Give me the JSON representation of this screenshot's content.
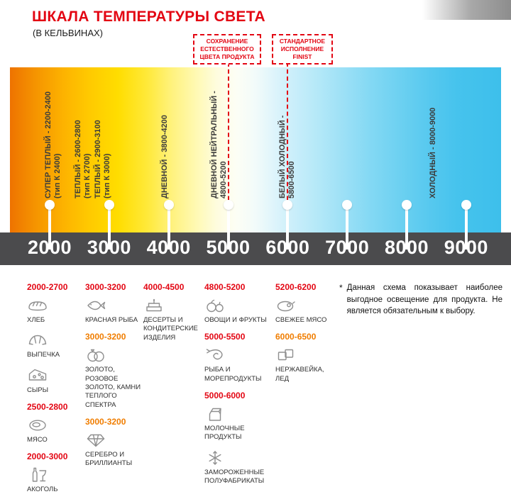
{
  "header": {
    "title": "ШКАЛА ТЕМПЕРАТУРЫ СВЕТА",
    "subtitle": "(В КЕЛЬВИНАХ)"
  },
  "callouts": [
    {
      "lines": [
        "СОХРАНЕНИЕ",
        "ЕСТЕСТВЕННОГО",
        "ЦВЕТА ПРОДУКТА"
      ],
      "anchor_k": "5000"
    },
    {
      "lines": [
        "СТАНДАРТНОЕ",
        "ИСПОЛНЕНИЕ",
        "FINIST"
      ],
      "anchor_k": "6000"
    }
  ],
  "scale": {
    "unit": "K",
    "ticks": [
      "2000",
      "3000",
      "4000",
      "5000",
      "6000",
      "7000",
      "8000",
      "9000"
    ],
    "zones": [
      {
        "lines": [
          "СУПЕР ТЕПЛЫЙ - 2200-2400",
          "(тип К 2400)"
        ]
      },
      {
        "lines": [
          "ТЕПЛЫЙ - 2600-2800",
          "(тип К 2700)"
        ]
      },
      {
        "lines": [
          "ТЕПЛЫЙ - 2900-3100",
          "(тип К 3000)"
        ]
      },
      {
        "lines": [
          "ДНЕВНОЙ - 3800-4200"
        ]
      },
      {
        "lines": [
          "ДНЕВНОЙ НЕЙТРАЛЬНЫЙ -",
          "4800-5200"
        ]
      },
      {
        "lines": [
          "БЕЛЫЙ ХОЛОДНЫЙ -",
          "5800-6500"
        ]
      },
      {
        "lines": [
          "ХОЛОДНЫЙ - 8000-9000"
        ]
      }
    ]
  },
  "products": {
    "columns": [
      {
        "items": [
          {
            "type": "range",
            "color": "red",
            "text": "2000-2700"
          },
          {
            "type": "product",
            "icon": "bread-icon",
            "label": "ХЛЕБ"
          },
          {
            "type": "product",
            "icon": "pastry-icon",
            "label": "ВЫПЕЧКА"
          },
          {
            "type": "product",
            "icon": "cheese-icon",
            "label": "СЫРЫ"
          },
          {
            "type": "range",
            "color": "red",
            "text": "2500-2800"
          },
          {
            "type": "product",
            "icon": "meat-icon",
            "label": "МЯСО"
          },
          {
            "type": "range",
            "color": "red",
            "text": "2000-3000"
          },
          {
            "type": "product",
            "icon": "alcohol-icon",
            "label": "АКОГОЛЬ"
          }
        ]
      },
      {
        "items": [
          {
            "type": "range",
            "color": "red",
            "text": "3000-3200"
          },
          {
            "type": "product",
            "icon": "fish-icon",
            "label": "КРАСНАЯ РЫБА"
          },
          {
            "type": "range",
            "color": "orange",
            "text": "3000-3200"
          },
          {
            "type": "product",
            "icon": "rings-icon",
            "label": "ЗОЛОТО, РОЗОВОЕ ЗОЛОТО, КАМНИ ТЕПЛОГО СПЕКТРА"
          },
          {
            "type": "range",
            "color": "orange",
            "text": "3000-3200"
          },
          {
            "type": "product",
            "icon": "diamond-icon",
            "label": "СЕРЕБРО И БРИЛЛИАНТЫ"
          }
        ]
      },
      {
        "items": [
          {
            "type": "range",
            "color": "red",
            "text": "4000-4500"
          },
          {
            "type": "product",
            "icon": "cake-icon",
            "label": "ДЕСЕРТЫ И КОНДИТЕРСКИЕ ИЗДЕЛИЯ"
          }
        ]
      },
      {
        "items": [
          {
            "type": "range",
            "color": "red",
            "text": "4800-5200"
          },
          {
            "type": "product",
            "icon": "fruit-icon",
            "label": "ОВОЩИ И ФРУКТЫ"
          },
          {
            "type": "range",
            "color": "red",
            "text": "5000-5500"
          },
          {
            "type": "product",
            "icon": "seafood-icon",
            "label": "РЫБА И МОРЕПРОДУКТЫ"
          },
          {
            "type": "range",
            "color": "red",
            "text": "5000-6000"
          },
          {
            "type": "product",
            "icon": "milk-icon",
            "label": "МОЛОЧНЫЕ ПРОДУКТЫ"
          },
          {
            "type": "product",
            "icon": "frozen-icon",
            "label": "ЗАМОРОЖЕННЫЕ ПОЛУФАБРИКАТЫ"
          }
        ]
      },
      {
        "items": [
          {
            "type": "range",
            "color": "red",
            "text": "5200-6200"
          },
          {
            "type": "product",
            "icon": "fresh-meat-icon",
            "label": "СВЕЖЕЕ МЯСО"
          },
          {
            "type": "range",
            "color": "orange",
            "text": "6000-6500"
          },
          {
            "type": "product",
            "icon": "ice-icon",
            "label": "НЕРЖАВЕЙКА, ЛЕД"
          }
        ]
      }
    ],
    "note_star": "*",
    "note": "Данная схема показывает наиболее выгодное освещение для продукта. Не является обязательным к выбору."
  },
  "palette": {
    "red": "#e30613",
    "orange": "#f07d00",
    "bar": "#4b4b4d",
    "text_dark": "#3c3c3c",
    "gradient_warm": "#ee7300",
    "gradient_cold": "#3dbfeb"
  }
}
